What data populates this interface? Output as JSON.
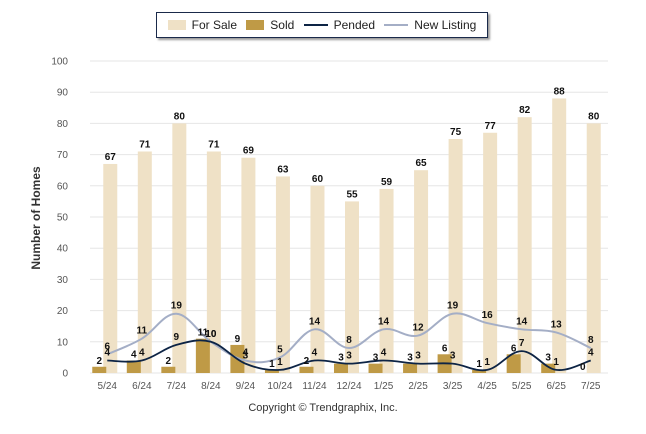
{
  "chart_data": {
    "type": "bar",
    "categories": [
      "5/24",
      "6/24",
      "7/24",
      "8/24",
      "9/24",
      "10/24",
      "11/24",
      "12/24",
      "1/25",
      "2/25",
      "3/25",
      "4/25",
      "5/25",
      "6/25",
      "7/25"
    ],
    "series": [
      {
        "name": "For Sale",
        "type": "bar",
        "color": "#efe1c6",
        "values": [
          67,
          71,
          80,
          71,
          69,
          63,
          60,
          55,
          59,
          65,
          75,
          77,
          82,
          88,
          80
        ]
      },
      {
        "name": "Sold",
        "type": "bar",
        "color": "#bf9a46",
        "values": [
          2,
          4,
          2,
          11,
          9,
          1,
          2,
          3,
          3,
          3,
          6,
          1,
          6,
          3,
          0
        ]
      },
      {
        "name": "Pended",
        "type": "line",
        "color": "#0d2445",
        "values": [
          4,
          4,
          9,
          10,
          3,
          1,
          4,
          3,
          4,
          3,
          3,
          1,
          7,
          1,
          4
        ]
      },
      {
        "name": "New Listing",
        "type": "line",
        "color": "#a4aec6",
        "values": [
          6,
          11,
          19,
          10,
          4,
          5,
          14,
          8,
          14,
          12,
          19,
          16,
          14,
          13,
          8
        ]
      }
    ],
    "ylabel": "Number of Homes",
    "xlabel": "",
    "ylim": [
      0,
      100
    ],
    "yticks": [
      0,
      10,
      20,
      30,
      40,
      50,
      60,
      70,
      80,
      90,
      100
    ],
    "grid": true,
    "legend_position": "top"
  },
  "copyright": "Copyright © Trendgraphix, Inc."
}
